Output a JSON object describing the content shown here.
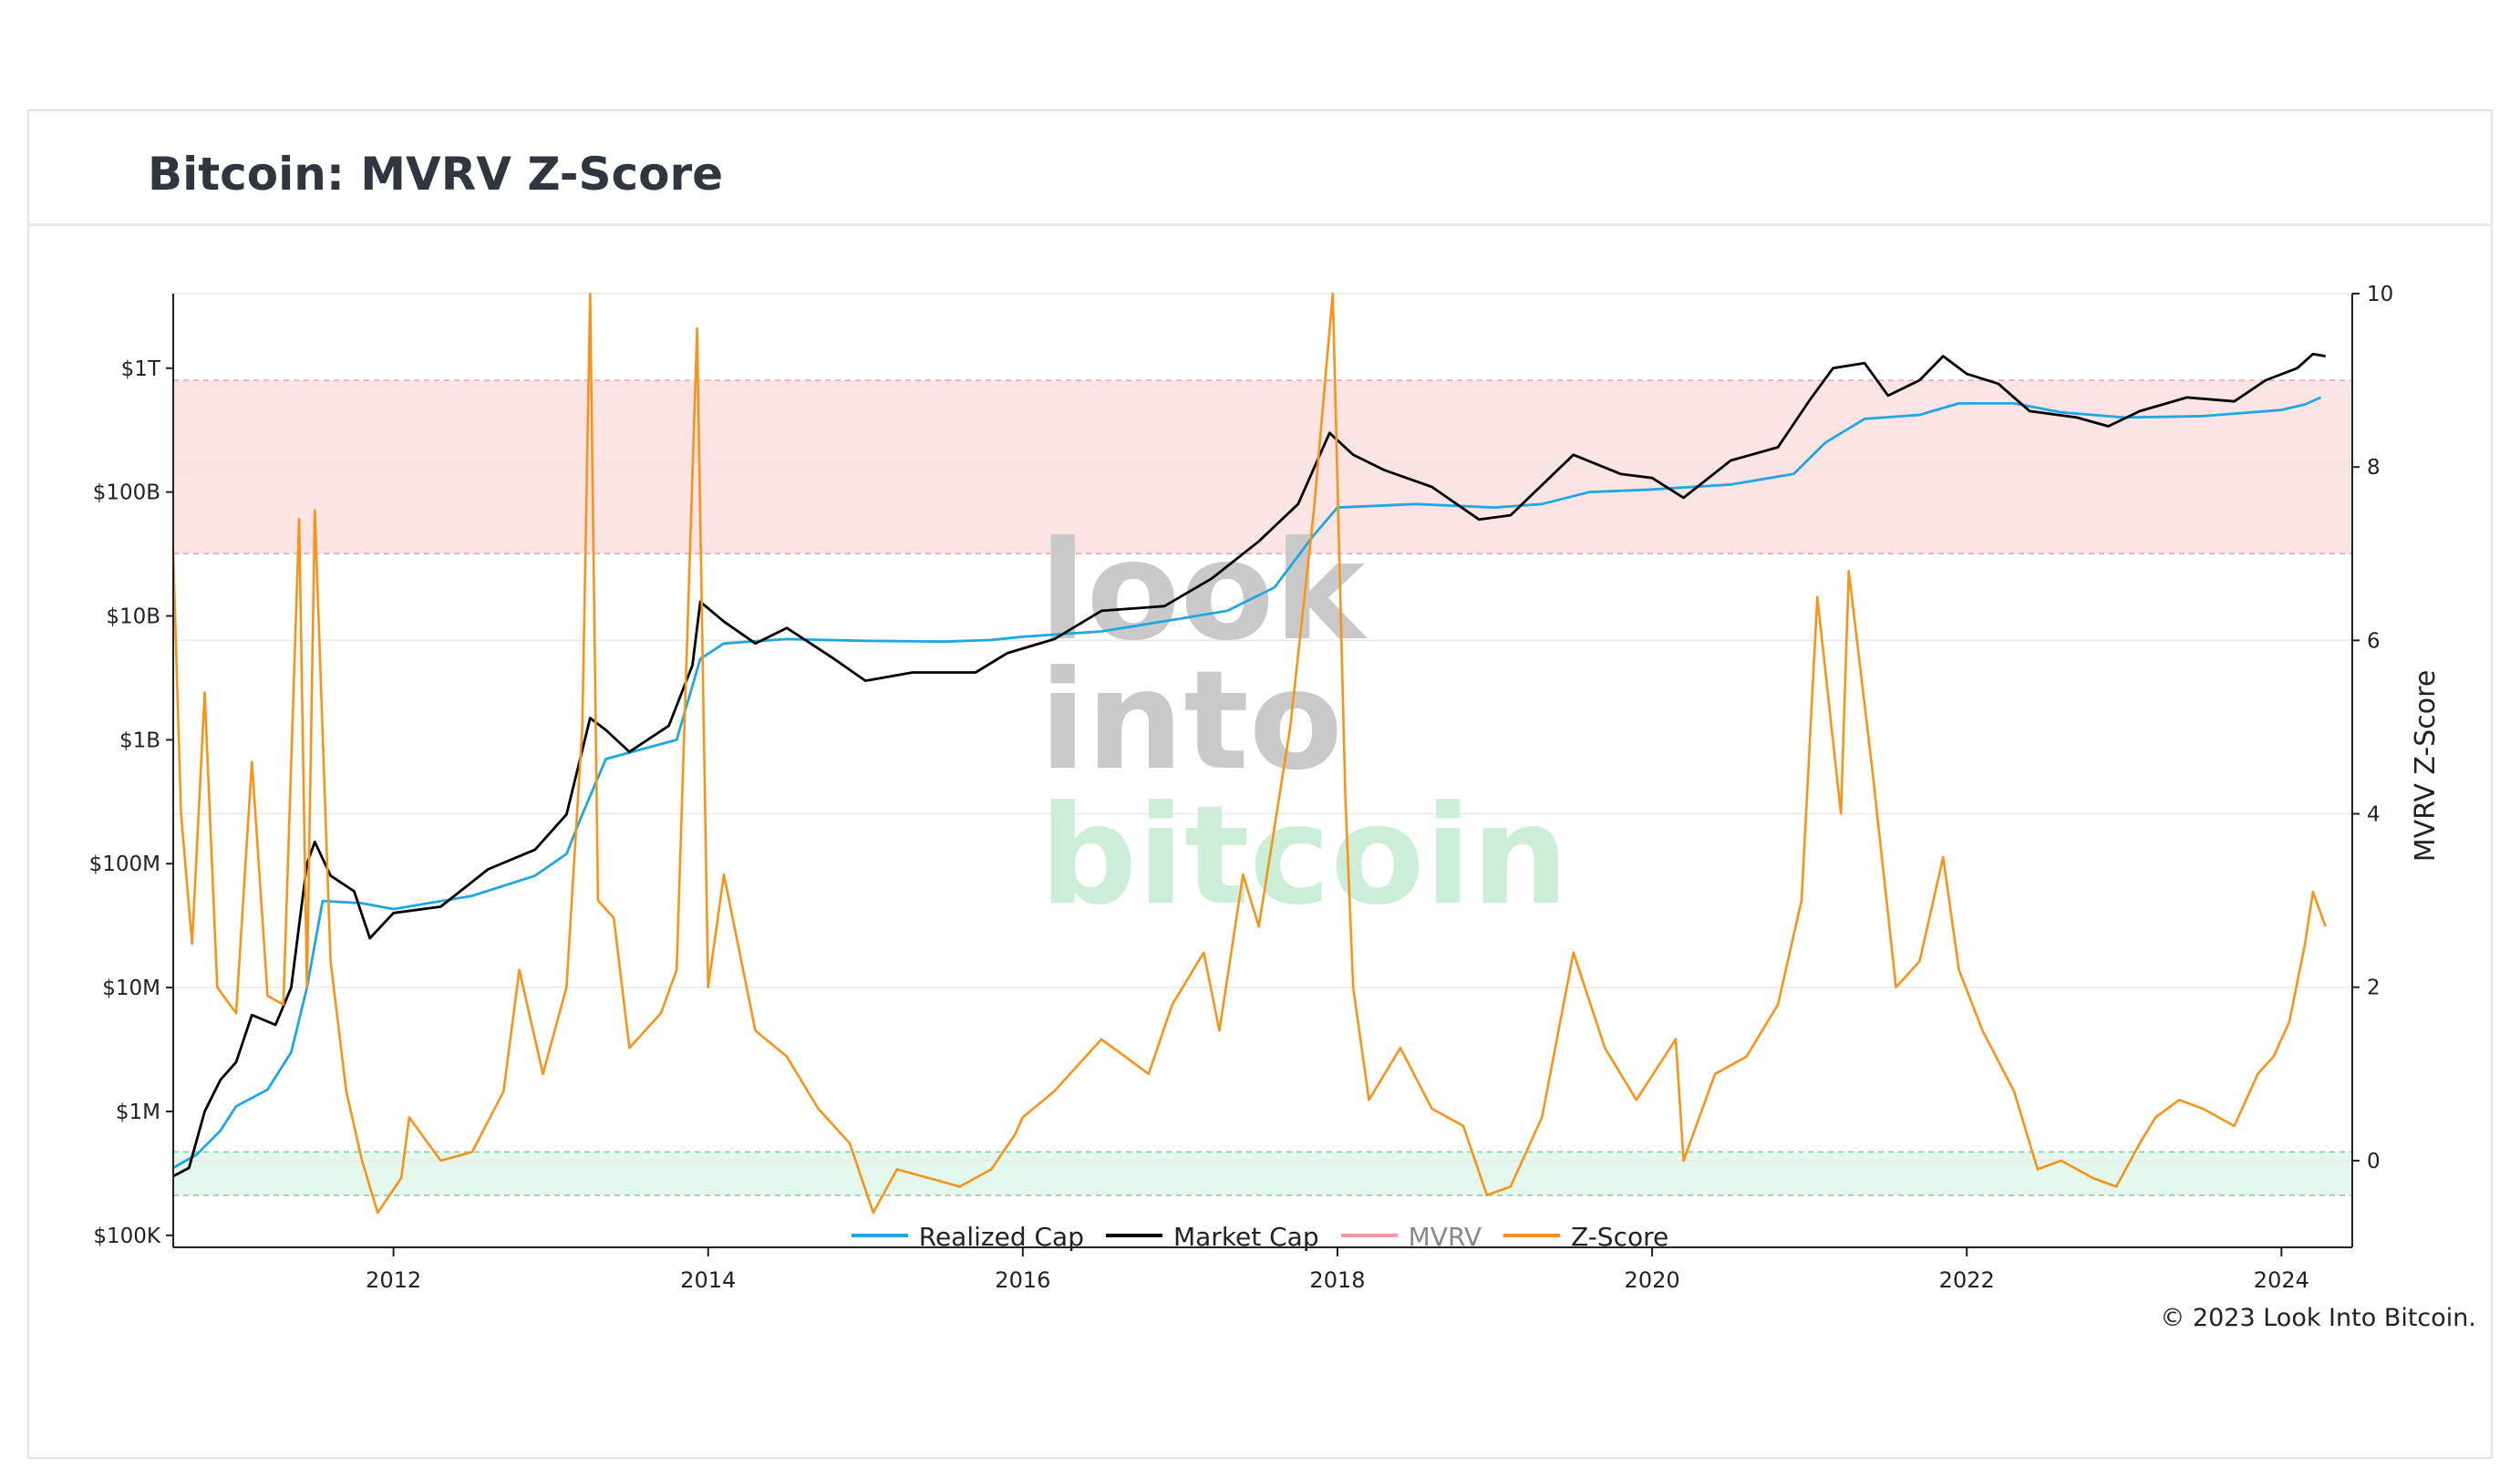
{
  "page": {
    "title": "Bitcoin: MVRV Z-Score",
    "copyright": "© 2023 Look Into Bitcoin."
  },
  "watermark": {
    "line1": "look",
    "line2": "into",
    "line3": "bitcoin"
  },
  "legend": [
    {
      "label": "Realized Cap",
      "color": "#1ea7e1",
      "muted": false
    },
    {
      "label": "Market Cap",
      "color": "#000000",
      "muted": false
    },
    {
      "label": "MVRV",
      "color": "#f29a9a",
      "muted": true
    },
    {
      "label": "Z-Score",
      "color": "#f7931a",
      "muted": false
    }
  ],
  "chart_data": {
    "type": "line",
    "title": "Bitcoin: MVRV Z-Score",
    "x_ticks": [
      "2012",
      "2014",
      "2016",
      "2018",
      "2020",
      "2022",
      "2024"
    ],
    "x_range": [
      2010.6,
      2024.45
    ],
    "y_left": {
      "scale": "log",
      "range": [
        80000,
        4000000000000
      ],
      "ticks": [
        {
          "value": 100000,
          "label": "$100K"
        },
        {
          "value": 1000000,
          "label": "$1M"
        },
        {
          "value": 10000000,
          "label": "$10M"
        },
        {
          "value": 100000000,
          "label": "$100M"
        },
        {
          "value": 1000000000,
          "label": "$1B"
        },
        {
          "value": 10000000000,
          "label": "$10B"
        },
        {
          "value": 100000000000,
          "label": "$100B"
        },
        {
          "value": 1000000000000,
          "label": "$1T"
        }
      ]
    },
    "y_right": {
      "label": "MVRV Z-Score",
      "range": [
        -1,
        10
      ],
      "ticks": [
        "0",
        "2",
        "4",
        "6",
        "8",
        "10"
      ]
    },
    "bands": [
      {
        "name": "overvalued",
        "axis": "right",
        "from": 7,
        "to": 9,
        "color": "#fde4e4"
      },
      {
        "name": "undervalued",
        "axis": "right",
        "from": -0.4,
        "to": 0.1,
        "color": "#e4f7ec"
      }
    ],
    "series": [
      {
        "name": "Realized Cap",
        "axis": "left",
        "color": "#1ea7e1",
        "points": [
          [
            2010.6,
            350000
          ],
          [
            2010.75,
            450000
          ],
          [
            2010.9,
            700000
          ],
          [
            2011.0,
            1100000
          ],
          [
            2011.2,
            1500000
          ],
          [
            2011.35,
            3000000
          ],
          [
            2011.45,
            10000000
          ],
          [
            2011.55,
            50000000
          ],
          [
            2011.8,
            48000000
          ],
          [
            2012.0,
            43000000
          ],
          [
            2012.5,
            55000000
          ],
          [
            2012.9,
            80000000
          ],
          [
            2013.1,
            120000000
          ],
          [
            2013.2,
            250000000
          ],
          [
            2013.35,
            700000000
          ],
          [
            2013.8,
            1000000000
          ],
          [
            2013.95,
            4500000000
          ],
          [
            2014.1,
            6000000000
          ],
          [
            2014.5,
            6500000000
          ],
          [
            2015.0,
            6300000000
          ],
          [
            2015.5,
            6200000000
          ],
          [
            2015.8,
            6400000000
          ],
          [
            2016.0,
            6800000000
          ],
          [
            2016.5,
            7500000000
          ],
          [
            2017.0,
            9500000000
          ],
          [
            2017.3,
            11000000000
          ],
          [
            2017.6,
            17000000000
          ],
          [
            2017.85,
            45000000000
          ],
          [
            2018.0,
            75000000000
          ],
          [
            2018.5,
            80000000000
          ],
          [
            2019.0,
            75000000000
          ],
          [
            2019.3,
            80000000000
          ],
          [
            2019.6,
            100000000000
          ],
          [
            2020.0,
            105000000000
          ],
          [
            2020.5,
            115000000000
          ],
          [
            2020.9,
            140000000000
          ],
          [
            2021.1,
            250000000000
          ],
          [
            2021.35,
            390000000000
          ],
          [
            2021.7,
            420000000000
          ],
          [
            2021.95,
            520000000000
          ],
          [
            2022.3,
            520000000000
          ],
          [
            2022.6,
            440000000000
          ],
          [
            2023.0,
            400000000000
          ],
          [
            2023.5,
            410000000000
          ],
          [
            2024.0,
            460000000000
          ],
          [
            2024.15,
            510000000000
          ],
          [
            2024.25,
            580000000000
          ]
        ]
      },
      {
        "name": "Market Cap",
        "axis": "left",
        "color": "#000000",
        "points": [
          [
            2010.6,
            300000
          ],
          [
            2010.7,
            350000
          ],
          [
            2010.8,
            1000000
          ],
          [
            2010.9,
            1800000
          ],
          [
            2011.0,
            2500000
          ],
          [
            2011.1,
            6000000
          ],
          [
            2011.25,
            5000000
          ],
          [
            2011.35,
            10000000
          ],
          [
            2011.45,
            100000000
          ],
          [
            2011.5,
            150000000
          ],
          [
            2011.6,
            80000000
          ],
          [
            2011.75,
            60000000
          ],
          [
            2011.85,
            25000000
          ],
          [
            2012.0,
            40000000
          ],
          [
            2012.3,
            45000000
          ],
          [
            2012.6,
            90000000
          ],
          [
            2012.9,
            130000000
          ],
          [
            2013.1,
            250000000
          ],
          [
            2013.25,
            1500000000
          ],
          [
            2013.35,
            1200000000
          ],
          [
            2013.5,
            800000000
          ],
          [
            2013.75,
            1300000000
          ],
          [
            2013.9,
            4000000000
          ],
          [
            2013.95,
            13000000000
          ],
          [
            2014.1,
            9000000000
          ],
          [
            2014.3,
            6000000000
          ],
          [
            2014.5,
            8000000000
          ],
          [
            2014.8,
            4500000000
          ],
          [
            2015.0,
            3000000000
          ],
          [
            2015.3,
            3500000000
          ],
          [
            2015.7,
            3500000000
          ],
          [
            2015.9,
            5000000000
          ],
          [
            2016.2,
            6500000000
          ],
          [
            2016.5,
            11000000000
          ],
          [
            2016.9,
            12000000000
          ],
          [
            2017.2,
            20000000000
          ],
          [
            2017.5,
            40000000000
          ],
          [
            2017.75,
            80000000000
          ],
          [
            2017.95,
            300000000000
          ],
          [
            2018.1,
            200000000000
          ],
          [
            2018.3,
            150000000000
          ],
          [
            2018.6,
            110000000000
          ],
          [
            2018.9,
            60000000000
          ],
          [
            2019.1,
            65000000000
          ],
          [
            2019.5,
            200000000000
          ],
          [
            2019.8,
            140000000000
          ],
          [
            2020.0,
            130000000000
          ],
          [
            2020.2,
            90000000000
          ],
          [
            2020.5,
            180000000000
          ],
          [
            2020.8,
            230000000000
          ],
          [
            2021.0,
            550000000000
          ],
          [
            2021.15,
            1000000000000
          ],
          [
            2021.35,
            1100000000000
          ],
          [
            2021.5,
            600000000000
          ],
          [
            2021.7,
            800000000000
          ],
          [
            2021.85,
            1250000000000
          ],
          [
            2022.0,
            900000000000
          ],
          [
            2022.2,
            750000000000
          ],
          [
            2022.4,
            450000000000
          ],
          [
            2022.7,
            400000000000
          ],
          [
            2022.9,
            340000000000
          ],
          [
            2023.1,
            450000000000
          ],
          [
            2023.4,
            580000000000
          ],
          [
            2023.7,
            540000000000
          ],
          [
            2023.9,
            800000000000
          ],
          [
            2024.1,
            1000000000000
          ],
          [
            2024.2,
            1300000000000
          ],
          [
            2024.28,
            1250000000000
          ]
        ]
      },
      {
        "name": "Z-Score",
        "axis": "right",
        "color": "#f7931a",
        "points": [
          [
            2010.6,
            7.0
          ],
          [
            2010.65,
            4.0
          ],
          [
            2010.72,
            2.5
          ],
          [
            2010.8,
            5.4
          ],
          [
            2010.88,
            2.0
          ],
          [
            2011.0,
            1.7
          ],
          [
            2011.1,
            4.6
          ],
          [
            2011.2,
            1.9
          ],
          [
            2011.3,
            1.8
          ],
          [
            2011.4,
            7.4
          ],
          [
            2011.45,
            2.0
          ],
          [
            2011.5,
            7.5
          ],
          [
            2011.6,
            2.3
          ],
          [
            2011.7,
            0.8
          ],
          [
            2011.8,
            0.0
          ],
          [
            2011.9,
            -0.6
          ],
          [
            2012.05,
            -0.2
          ],
          [
            2012.1,
            0.5
          ],
          [
            2012.3,
            0.0
          ],
          [
            2012.5,
            0.1
          ],
          [
            2012.7,
            0.8
          ],
          [
            2012.8,
            2.2
          ],
          [
            2012.95,
            1.0
          ],
          [
            2013.1,
            2.0
          ],
          [
            2013.2,
            5.0
          ],
          [
            2013.25,
            10.0
          ],
          [
            2013.3,
            3.0
          ],
          [
            2013.4,
            2.8
          ],
          [
            2013.5,
            1.3
          ],
          [
            2013.7,
            1.7
          ],
          [
            2013.8,
            2.2
          ],
          [
            2013.93,
            9.6
          ],
          [
            2014.0,
            2.0
          ],
          [
            2014.1,
            3.3
          ],
          [
            2014.3,
            1.5
          ],
          [
            2014.5,
            1.2
          ],
          [
            2014.7,
            0.6
          ],
          [
            2014.9,
            0.2
          ],
          [
            2015.05,
            -0.6
          ],
          [
            2015.2,
            -0.1
          ],
          [
            2015.4,
            -0.2
          ],
          [
            2015.6,
            -0.3
          ],
          [
            2015.8,
            -0.1
          ],
          [
            2015.95,
            0.3
          ],
          [
            2016.0,
            0.5
          ],
          [
            2016.2,
            0.8
          ],
          [
            2016.5,
            1.4
          ],
          [
            2016.8,
            1.0
          ],
          [
            2016.95,
            1.8
          ],
          [
            2017.15,
            2.4
          ],
          [
            2017.25,
            1.5
          ],
          [
            2017.4,
            3.3
          ],
          [
            2017.5,
            2.7
          ],
          [
            2017.7,
            5.0
          ],
          [
            2017.85,
            7.5
          ],
          [
            2017.97,
            10.0
          ],
          [
            2018.05,
            4.2
          ],
          [
            2018.1,
            2.0
          ],
          [
            2018.2,
            0.7
          ],
          [
            2018.4,
            1.3
          ],
          [
            2018.6,
            0.6
          ],
          [
            2018.8,
            0.4
          ],
          [
            2018.95,
            -0.4
          ],
          [
            2019.1,
            -0.3
          ],
          [
            2019.3,
            0.5
          ],
          [
            2019.5,
            2.4
          ],
          [
            2019.7,
            1.3
          ],
          [
            2019.9,
            0.7
          ],
          [
            2020.15,
            1.4
          ],
          [
            2020.2,
            0.0
          ],
          [
            2020.4,
            1.0
          ],
          [
            2020.6,
            1.2
          ],
          [
            2020.8,
            1.8
          ],
          [
            2020.95,
            3.0
          ],
          [
            2021.05,
            6.5
          ],
          [
            2021.2,
            4.0
          ],
          [
            2021.25,
            6.8
          ],
          [
            2021.4,
            4.5
          ],
          [
            2021.55,
            2.0
          ],
          [
            2021.7,
            2.3
          ],
          [
            2021.85,
            3.5
          ],
          [
            2021.95,
            2.2
          ],
          [
            2022.1,
            1.5
          ],
          [
            2022.3,
            0.8
          ],
          [
            2022.45,
            -0.1
          ],
          [
            2022.6,
            0.0
          ],
          [
            2022.8,
            -0.2
          ],
          [
            2022.95,
            -0.3
          ],
          [
            2023.1,
            0.2
          ],
          [
            2023.2,
            0.5
          ],
          [
            2023.35,
            0.7
          ],
          [
            2023.5,
            0.6
          ],
          [
            2023.7,
            0.4
          ],
          [
            2023.85,
            1.0
          ],
          [
            2023.95,
            1.2
          ],
          [
            2024.05,
            1.6
          ],
          [
            2024.15,
            2.5
          ],
          [
            2024.2,
            3.1
          ],
          [
            2024.28,
            2.7
          ]
        ]
      }
    ]
  }
}
